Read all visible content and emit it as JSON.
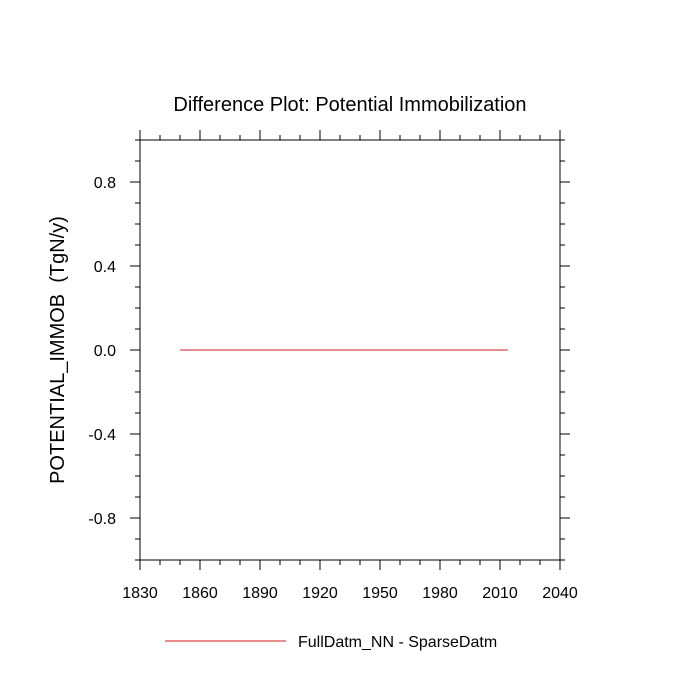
{
  "chart_data": {
    "type": "line",
    "title": "Difference Plot: Potential Immobilization",
    "xlabel": "",
    "ylabel": "POTENTIAL_IMMOB  (TgN/y)",
    "xlim": [
      1830,
      2040
    ],
    "ylim": [
      -1.0,
      1.0
    ],
    "x_ticks": [
      1830,
      1860,
      1890,
      1920,
      1950,
      1980,
      2010,
      2040
    ],
    "x_tick_labels": [
      "1830",
      "1860",
      "1890",
      "1920",
      "1950",
      "1980",
      "2010",
      "2040"
    ],
    "y_ticks": [
      0.8,
      0.4,
      0.0,
      -0.4,
      -0.8
    ],
    "y_tick_labels": [
      "0.8",
      "0.4",
      "0.0",
      "-0.4",
      "-0.8"
    ],
    "grid": false,
    "legend_position": "bottom",
    "series": [
      {
        "name": "FullDatm_NN - SparseDatm",
        "color": "#e06666",
        "x": [
          1850,
          2014
        ],
        "values": [
          0.0,
          0.0
        ]
      }
    ]
  }
}
